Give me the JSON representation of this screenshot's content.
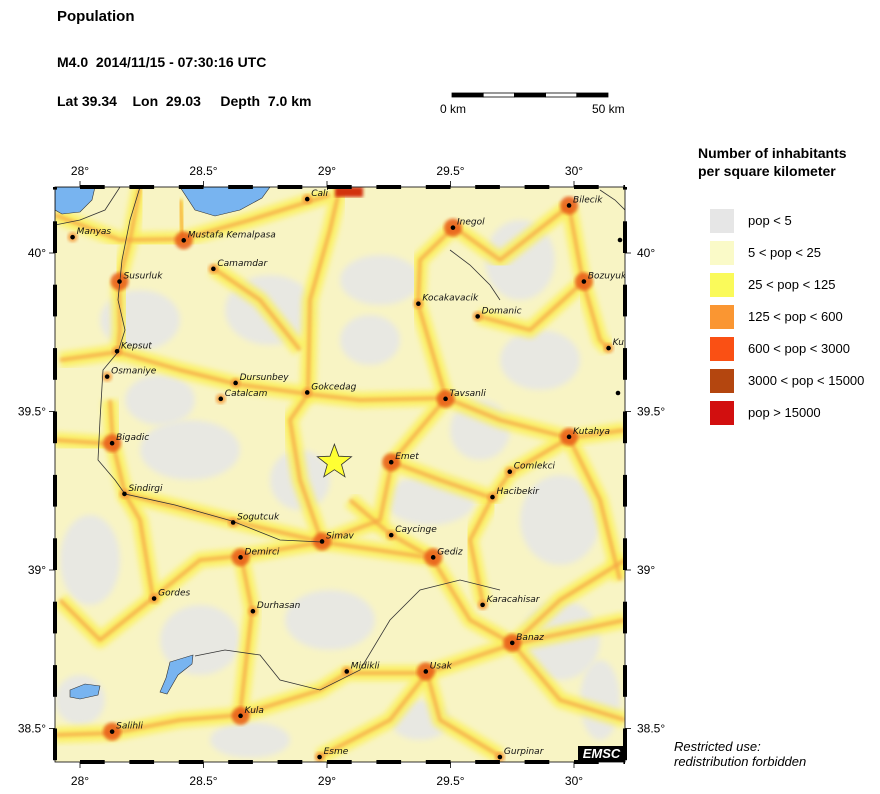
{
  "header": {
    "title": "Population",
    "event": "M4.0  2014/11/15 - 07:30:16 UTC",
    "location": "Lat 39.34    Lon  29.03     Depth  7.0 km"
  },
  "scale_bar": {
    "start_label": "0 km",
    "end_label": "50 km"
  },
  "axes": {
    "lon_ticks": [
      {
        "value": 28,
        "label": "28°"
      },
      {
        "value": 28.5,
        "label": "28.5°"
      },
      {
        "value": 29,
        "label": "29°"
      },
      {
        "value": 29.5,
        "label": "29.5°"
      },
      {
        "value": 30,
        "label": "30°"
      }
    ],
    "lat_ticks": [
      {
        "value": 40,
        "label": "40°"
      },
      {
        "value": 39.5,
        "label": "39.5°"
      },
      {
        "value": 39,
        "label": "39°"
      },
      {
        "value": 38.5,
        "label": "38.5°"
      }
    ],
    "lon_range": [
      27.9,
      30.22
    ],
    "lat_range": [
      38.4,
      40.21
    ]
  },
  "epicenter": {
    "lat": 39.34,
    "lon": 29.03,
    "color": "#ffff33"
  },
  "cities": [
    {
      "name": "Manyas",
      "lon": 27.97,
      "lat": 40.05
    },
    {
      "name": "Mustafa Kemalpasa",
      "lon": 28.42,
      "lat": 40.04
    },
    {
      "name": "Susurluk",
      "lon": 28.16,
      "lat": 39.91
    },
    {
      "name": "Camamdar",
      "lon": 28.54,
      "lat": 39.95
    },
    {
      "name": "Kepsut",
      "lon": 28.15,
      "lat": 39.69
    },
    {
      "name": "Osmaniye",
      "lon": 28.11,
      "lat": 39.61
    },
    {
      "name": "Dursunbey",
      "lon": 28.63,
      "lat": 39.59
    },
    {
      "name": "Catalcam",
      "lon": 28.57,
      "lat": 39.54
    },
    {
      "name": "Gokcedag",
      "lon": 28.92,
      "lat": 39.56
    },
    {
      "name": "Cali",
      "lon": 28.92,
      "lat": 40.17
    },
    {
      "name": "Inegol",
      "lon": 29.51,
      "lat": 40.08
    },
    {
      "name": "Bilecik",
      "lon": 29.98,
      "lat": 40.15
    },
    {
      "name": "Bozuyuk",
      "lon": 30.04,
      "lat": 39.91
    },
    {
      "name": "Ku",
      "lon": 30.14,
      "lat": 39.7
    },
    {
      "name": "Kocakavacik",
      "lon": 29.37,
      "lat": 39.84
    },
    {
      "name": "Domanic",
      "lon": 29.61,
      "lat": 39.8
    },
    {
      "name": "Tavsanli",
      "lon": 29.48,
      "lat": 39.54
    },
    {
      "name": "Kutahya",
      "lon": 29.98,
      "lat": 39.42
    },
    {
      "name": "Emet",
      "lon": 29.26,
      "lat": 39.34
    },
    {
      "name": "Comlekci",
      "lon": 29.74,
      "lat": 39.31
    },
    {
      "name": "Hacibekir",
      "lon": 29.67,
      "lat": 39.23
    },
    {
      "name": "Bigadic",
      "lon": 28.13,
      "lat": 39.4
    },
    {
      "name": "Sindirgi",
      "lon": 28.18,
      "lat": 39.24
    },
    {
      "name": "Sogutcuk",
      "lon": 28.62,
      "lat": 39.15
    },
    {
      "name": "Simav",
      "lon": 28.98,
      "lat": 39.09
    },
    {
      "name": "Caycinge",
      "lon": 29.26,
      "lat": 39.11
    },
    {
      "name": "Gediz",
      "lon": 29.43,
      "lat": 39.04
    },
    {
      "name": "Demirci",
      "lon": 28.65,
      "lat": 39.04
    },
    {
      "name": "Gordes",
      "lon": 28.3,
      "lat": 38.91
    },
    {
      "name": "Durhasan",
      "lon": 28.7,
      "lat": 38.87
    },
    {
      "name": "Karacahisar",
      "lon": 29.63,
      "lat": 38.89
    },
    {
      "name": "Banaz",
      "lon": 29.75,
      "lat": 38.77
    },
    {
      "name": "Midikli",
      "lon": 29.08,
      "lat": 38.68
    },
    {
      "name": "Usak",
      "lon": 29.4,
      "lat": 38.68
    },
    {
      "name": "Kula",
      "lon": 28.65,
      "lat": 38.54
    },
    {
      "name": "Salihli",
      "lon": 28.13,
      "lat": 38.49
    },
    {
      "name": "Esme",
      "lon": 28.97,
      "lat": 38.41
    },
    {
      "name": "Gurpinar",
      "lon": 29.7,
      "lat": 38.41
    }
  ],
  "legend": {
    "title_line1": "Number of inhabitants",
    "title_line2": "per square kilometer",
    "items": [
      {
        "label": "pop < 5",
        "color": "#e6e6e6"
      },
      {
        "label": "5 < pop < 25",
        "color": "#fafac8"
      },
      {
        "label": "25 < pop < 125",
        "color": "#fafa5a"
      },
      {
        "label": "125 < pop < 600",
        "color": "#fa9632"
      },
      {
        "label": "600 < pop < 3000",
        "color": "#fa5014"
      },
      {
        "label": "3000 < pop < 15000",
        "color": "#b4460f"
      },
      {
        "label": "pop > 15000",
        "color": "#d20f0f"
      }
    ]
  },
  "water_color": "#78b4f0",
  "footer": {
    "restricted_line1": "Restricted use:",
    "restricted_line2": "redistribution forbidden",
    "logo": "EMSC"
  }
}
